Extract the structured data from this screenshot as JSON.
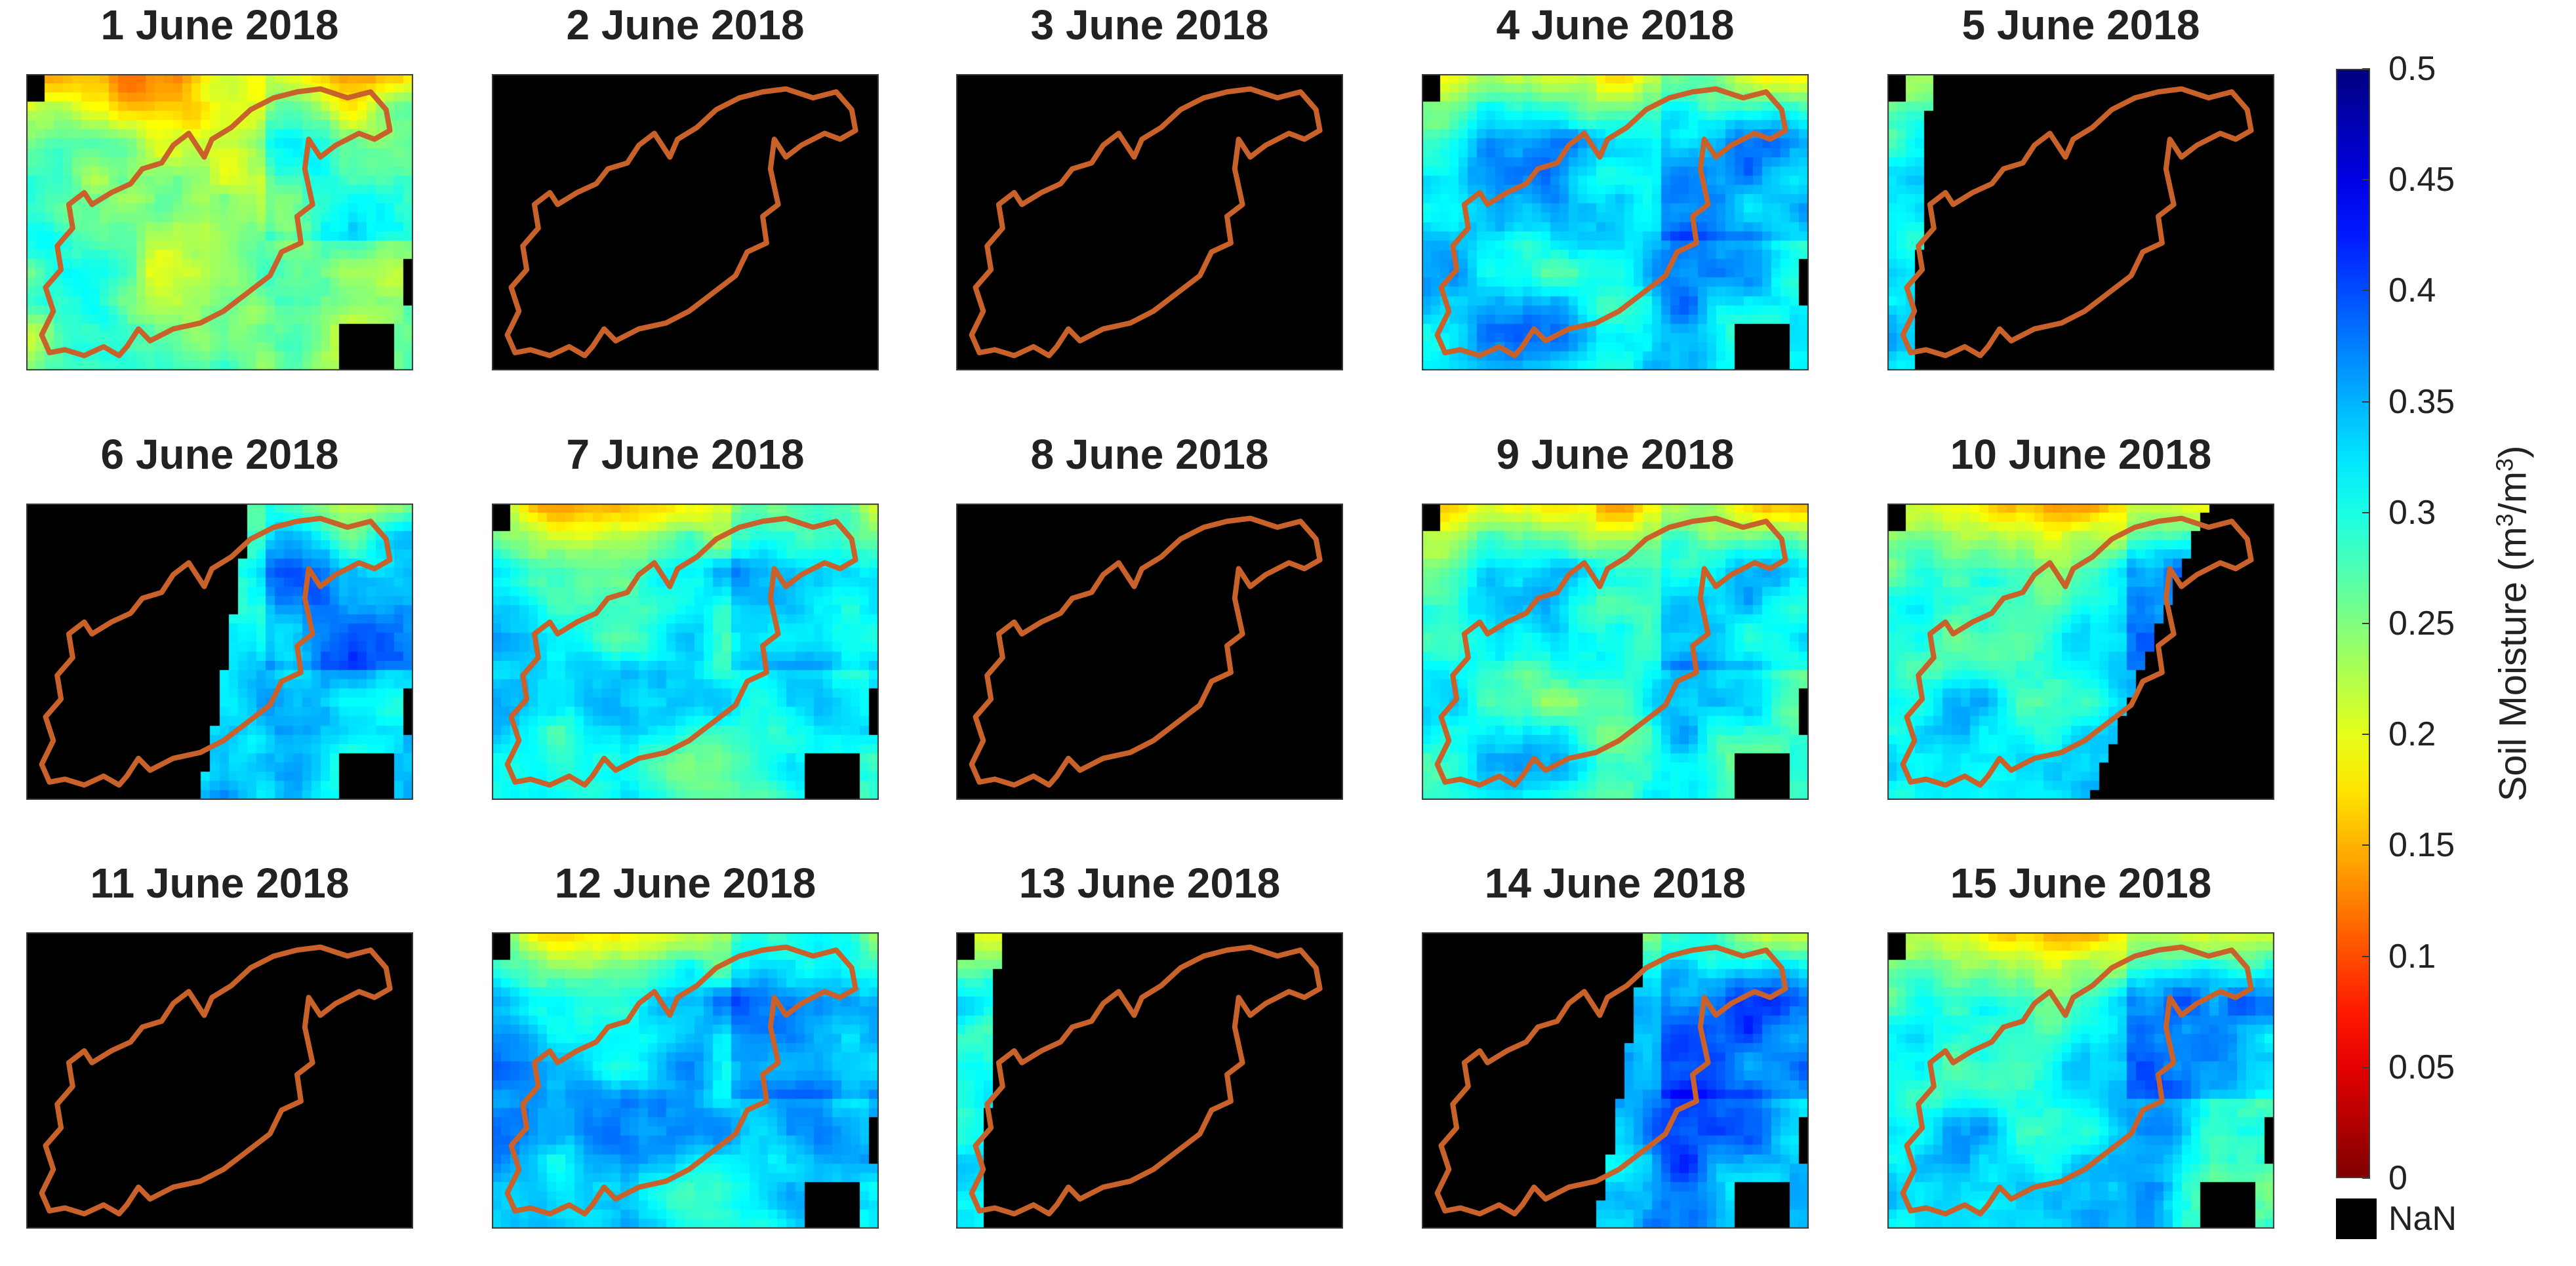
{
  "panels": [
    {
      "title": "1 June 2018",
      "nan_coverage": "none",
      "mean_moisture": 0.26,
      "wetness": "moderate"
    },
    {
      "title": "2 June 2018",
      "nan_coverage": "full",
      "mean_moisture": null,
      "wetness": "none"
    },
    {
      "title": "3 June 2018",
      "nan_coverage": "full",
      "mean_moisture": null,
      "wetness": "none"
    },
    {
      "title": "4 June 2018",
      "nan_coverage": "none",
      "mean_moisture": 0.33,
      "wetness": "wet"
    },
    {
      "title": "5 June 2018",
      "nan_coverage": "mostly",
      "mean_moisture": 0.32,
      "wetness": "wet"
    },
    {
      "title": "6 June 2018",
      "nan_coverage": "left-half",
      "mean_moisture": 0.34,
      "wetness": "wet"
    },
    {
      "title": "7 June 2018",
      "nan_coverage": "none",
      "mean_moisture": 0.3,
      "wetness": "wet"
    },
    {
      "title": "8 June 2018",
      "nan_coverage": "full",
      "mean_moisture": null,
      "wetness": "none"
    },
    {
      "title": "9 June 2018",
      "nan_coverage": "none",
      "mean_moisture": 0.3,
      "wetness": "wet"
    },
    {
      "title": "10 June 2018",
      "nan_coverage": "right-half",
      "mean_moisture": 0.3,
      "wetness": "wet"
    },
    {
      "title": "11 June 2018",
      "nan_coverage": "full",
      "mean_moisture": null,
      "wetness": "none"
    },
    {
      "title": "12 June 2018",
      "nan_coverage": "none",
      "mean_moisture": 0.33,
      "wetness": "wet"
    },
    {
      "title": "13 June 2018",
      "nan_coverage": "mostly",
      "mean_moisture": 0.3,
      "wetness": "wet"
    },
    {
      "title": "14 June 2018",
      "nan_coverage": "left-half",
      "mean_moisture": 0.36,
      "wetness": "very-wet"
    },
    {
      "title": "15 June 2018",
      "nan_coverage": "none",
      "mean_moisture": 0.31,
      "wetness": "wet"
    }
  ],
  "colorbar": {
    "label_prefix": "Soil Moisture (m",
    "label_sup1": "3",
    "label_mid": "/m",
    "label_sup2": "3",
    "label_suffix": ")",
    "min": 0,
    "max": 0.5,
    "ticks": [
      "0",
      "0.05",
      "0.1",
      "0.15",
      "0.2",
      "0.25",
      "0.3",
      "0.35",
      "0.4",
      "0.45",
      "0.5"
    ],
    "colormap": "jet-reversed",
    "nan_label": "NaN",
    "nan_color": "#000000"
  },
  "outline_color": "#c8622a"
}
